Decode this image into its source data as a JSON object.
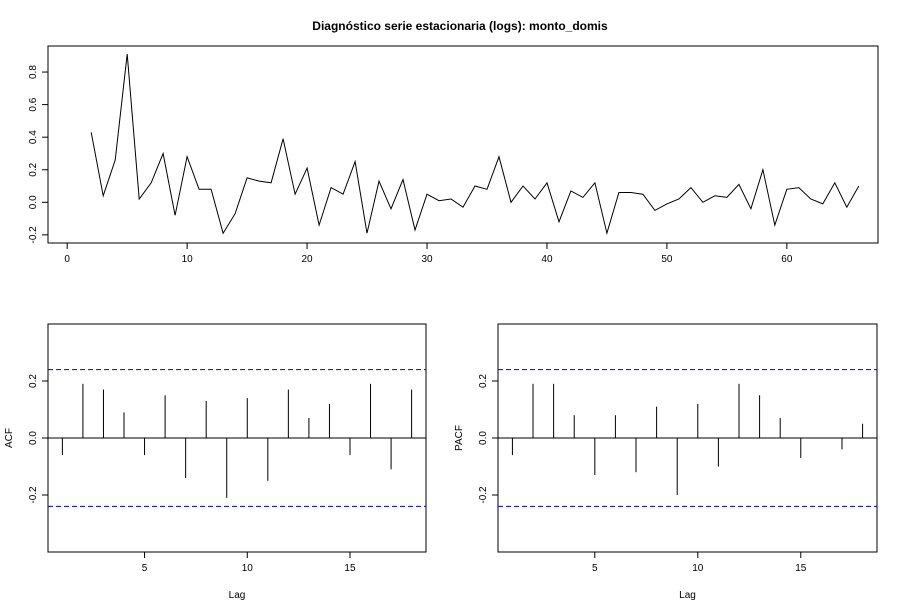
{
  "title": "Diagnóstico serie estacionaria (logs): monto_domis",
  "chart_data": [
    {
      "type": "line",
      "title": "Diagnóstico serie estacionaria (logs): monto_domis",
      "xlabel": "",
      "ylabel": "",
      "xlim": [
        0,
        66
      ],
      "ylim": [
        -0.2,
        0.9
      ],
      "xticks": [
        0,
        10,
        20,
        30,
        40,
        50,
        60
      ],
      "yticks": [
        -0.2,
        0.0,
        0.2,
        0.4,
        0.6,
        0.8
      ],
      "ytick_labels": [
        "-0.2",
        "0.0",
        "0.2",
        "0.4",
        "0.6",
        "0.8"
      ],
      "x": [
        2,
        3,
        4,
        5,
        6,
        7,
        8,
        9,
        10,
        11,
        12,
        13,
        14,
        15,
        16,
        17,
        18,
        19,
        20,
        21,
        22,
        23,
        24,
        25,
        26,
        27,
        28,
        29,
        30,
        31,
        32,
        33,
        34,
        35,
        36,
        37,
        38,
        39,
        40,
        41,
        42,
        43,
        44,
        45,
        46,
        47,
        48,
        49,
        50,
        51,
        52,
        53,
        54,
        55,
        56,
        57,
        58,
        59,
        60,
        61,
        62,
        63,
        64,
        65,
        66
      ],
      "y": [
        0.43,
        0.04,
        0.26,
        0.91,
        0.02,
        0.12,
        0.3,
        -0.08,
        0.28,
        0.08,
        0.08,
        -0.19,
        -0.07,
        0.15,
        0.13,
        0.12,
        0.39,
        0.05,
        0.21,
        -0.14,
        0.09,
        0.05,
        0.25,
        -0.19,
        0.13,
        -0.04,
        0.14,
        -0.17,
        0.05,
        0.01,
        0.02,
        -0.03,
        0.1,
        0.08,
        0.28,
        0.0,
        0.1,
        0.02,
        0.12,
        -0.12,
        0.07,
        0.03,
        0.12,
        -0.19,
        0.06,
        0.06,
        0.05,
        -0.05,
        -0.01,
        0.02,
        0.09,
        0.0,
        0.04,
        0.03,
        0.11,
        -0.04,
        0.2,
        -0.14,
        0.08,
        0.09,
        0.02,
        -0.01,
        0.12,
        -0.03,
        0.1
      ],
      "grid": false
    },
    {
      "type": "bar",
      "title": "",
      "xlabel": "Lag",
      "ylabel": "ACF",
      "xlim": [
        1,
        18
      ],
      "ylim": [
        -0.4,
        0.4
      ],
      "xticks": [
        5,
        10,
        15
      ],
      "yticks": [
        -0.2,
        0.0,
        0.2
      ],
      "ytick_labels": [
        "-0.2",
        "0.0",
        "0.2"
      ],
      "lags": [
        1,
        2,
        3,
        4,
        5,
        6,
        7,
        8,
        9,
        10,
        11,
        12,
        13,
        14,
        15,
        16,
        17,
        18
      ],
      "values": [
        -0.06,
        0.19,
        0.17,
        0.09,
        -0.06,
        0.15,
        -0.14,
        0.13,
        -0.21,
        0.14,
        -0.15,
        0.17,
        0.07,
        0.12,
        -0.06,
        0.19,
        -0.11,
        0.17
      ],
      "confidence_bound": 0.24,
      "bound_color": "#0000cc"
    },
    {
      "type": "bar",
      "title": "",
      "xlabel": "Lag",
      "ylabel": "PACF",
      "xlim": [
        1,
        18
      ],
      "ylim": [
        -0.4,
        0.4
      ],
      "xticks": [
        5,
        10,
        15
      ],
      "yticks": [
        -0.2,
        0.0,
        0.2
      ],
      "ytick_labels": [
        "-0.2",
        "0.0",
        "0.2"
      ],
      "lags": [
        1,
        2,
        3,
        4,
        5,
        6,
        7,
        8,
        9,
        10,
        11,
        12,
        13,
        14,
        15,
        16,
        17,
        18
      ],
      "values": [
        -0.06,
        0.19,
        0.19,
        0.08,
        -0.13,
        0.08,
        -0.12,
        0.11,
        -0.2,
        0.12,
        -0.1,
        0.19,
        0.15,
        0.07,
        -0.07,
        0.0,
        -0.04,
        0.05
      ],
      "confidence_bound": 0.24,
      "bound_color": "#0000cc"
    }
  ]
}
